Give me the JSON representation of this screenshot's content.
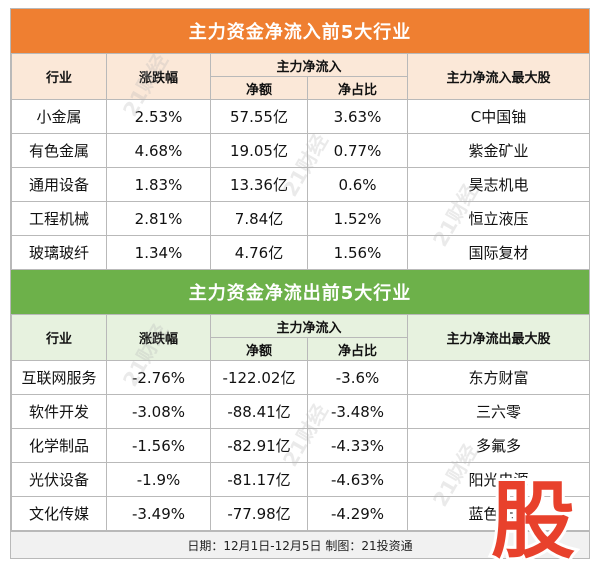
{
  "inflow": {
    "title": "主力资金净流入前5大行业",
    "headers": {
      "industry": "行业",
      "change": "涨跌幅",
      "main_flow": "主力净流入",
      "net_amount": "净额",
      "net_ratio": "净占比",
      "top_stock": "主力净流入最大股"
    },
    "rows": [
      {
        "industry": "小金属",
        "change": "2.53%",
        "net_amount": "57.55亿",
        "net_ratio": "3.63%",
        "top_stock": "C中国铀"
      },
      {
        "industry": "有色金属",
        "change": "4.68%",
        "net_amount": "19.05亿",
        "net_ratio": "0.77%",
        "top_stock": "紫金矿业"
      },
      {
        "industry": "通用设备",
        "change": "1.83%",
        "net_amount": "13.36亿",
        "net_ratio": "0.6%",
        "top_stock": "昊志机电"
      },
      {
        "industry": "工程机械",
        "change": "2.81%",
        "net_amount": "7.84亿",
        "net_ratio": "1.52%",
        "top_stock": "恒立液压"
      },
      {
        "industry": "玻璃玻纤",
        "change": "1.34%",
        "net_amount": "4.76亿",
        "net_ratio": "1.56%",
        "top_stock": "国际复材"
      }
    ]
  },
  "outflow": {
    "title": "主力资金净流出前5大行业",
    "headers": {
      "industry": "行业",
      "change": "涨跌幅",
      "main_flow": "主力净流入",
      "net_amount": "净额",
      "net_ratio": "净占比",
      "top_stock": "主力净流出最大股"
    },
    "rows": [
      {
        "industry": "互联网服务",
        "change": "-2.76%",
        "net_amount": "-122.02亿",
        "net_ratio": "-3.6%",
        "top_stock": "东方财富"
      },
      {
        "industry": "软件开发",
        "change": "-3.08%",
        "net_amount": "-88.41亿",
        "net_ratio": "-3.48%",
        "top_stock": "三六零"
      },
      {
        "industry": "化学制品",
        "change": "-1.56%",
        "net_amount": "-82.91亿",
        "net_ratio": "-4.33%",
        "top_stock": "多氟多"
      },
      {
        "industry": "光伏设备",
        "change": "-1.9%",
        "net_amount": "-81.17亿",
        "net_ratio": "-4.63%",
        "top_stock": "阳光电源"
      },
      {
        "industry": "文化传媒",
        "change": "-3.49%",
        "net_amount": "-77.98亿",
        "net_ratio": "-4.29%",
        "top_stock": "蓝色光标"
      }
    ]
  },
  "footer": "日期：12月1日-12月5日 制图：21投资通",
  "watermark": "21财经",
  "stamp": {
    "text": "股",
    "color": "#e8412c"
  },
  "colors": {
    "inflow_banner": "#ef7f31",
    "outflow_banner": "#6db14a"
  }
}
